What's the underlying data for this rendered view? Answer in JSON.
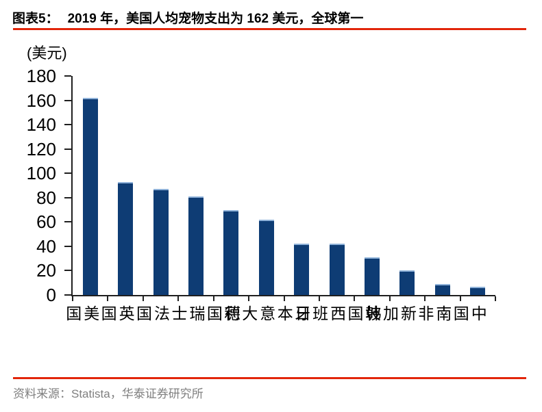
{
  "header": {
    "label": "图表5：",
    "title": "2019 年，美国人均宠物支出为 162 美元，全球第一"
  },
  "chart_data": {
    "type": "bar",
    "title": "2019 年，美国人均宠物支出为 162 美元，全球第一",
    "unit_label": "(美元)",
    "categories": [
      "美国",
      "英国",
      "法国",
      "瑞士",
      "德国",
      "意大利",
      "日本",
      "西班牙",
      "韩国",
      "新加坡",
      "南非",
      "中国"
    ],
    "values": [
      162,
      93,
      87,
      81,
      70,
      62,
      42,
      42,
      31,
      20,
      9,
      7
    ],
    "xlabel": "",
    "ylabel": "(美元)",
    "ylim": [
      0,
      180
    ],
    "ytick_step": 20,
    "yticks": [
      0,
      20,
      40,
      60,
      80,
      100,
      120,
      140,
      160,
      180
    ],
    "grid": false,
    "legend": "none"
  },
  "footer": {
    "source": "资料来源：Statista，华泰证券研究所"
  },
  "colors": {
    "bar": "#0e3c74",
    "bar_edge": "#8fb2d9",
    "accent_red": "#e2250a",
    "axis": "#1f1f1f",
    "source_gray": "#7f7f7f"
  }
}
